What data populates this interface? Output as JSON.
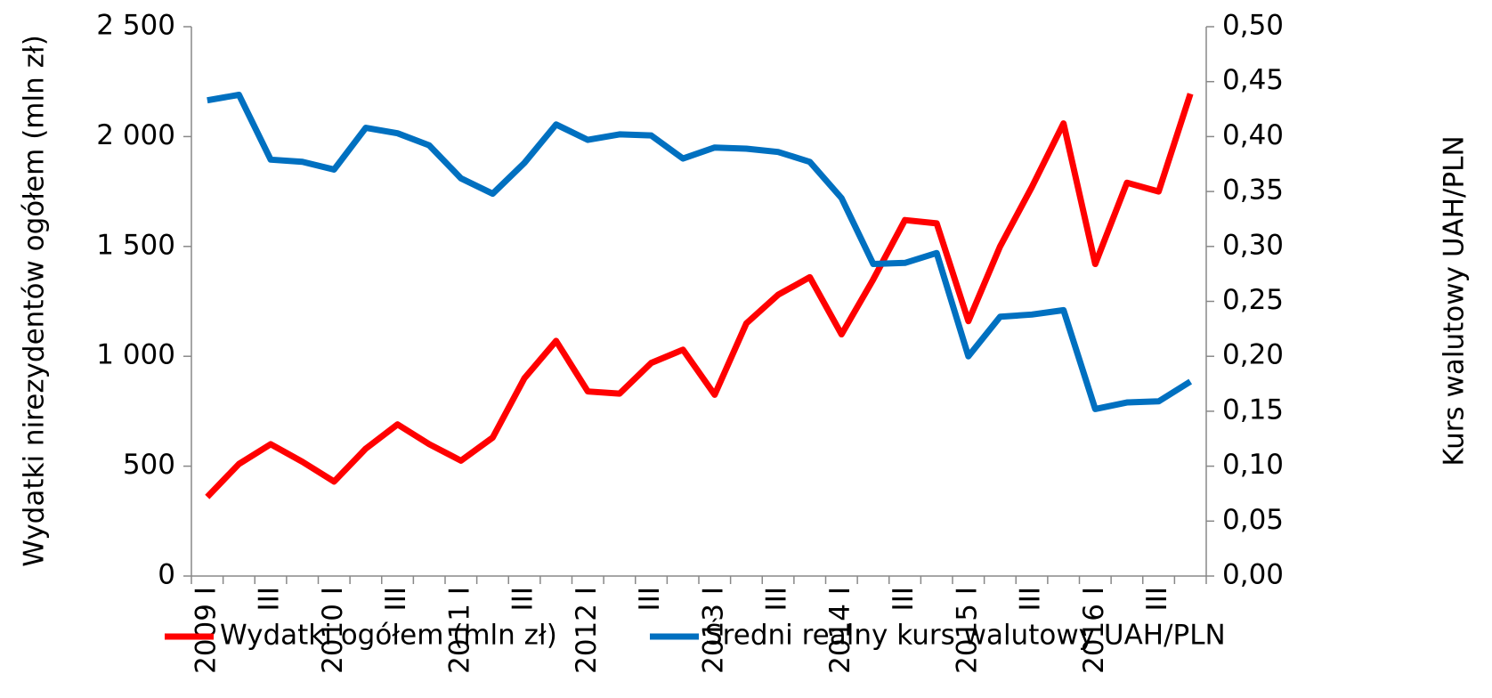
{
  "chart_data": {
    "type": "line",
    "y_label": "Wydatki nirezydentów ogółem (mln zł)",
    "y2_label": "Kurs walutowy UAH/PLN",
    "categories": [
      "2009 I",
      null,
      "III",
      null,
      "2010 I",
      null,
      "III",
      null,
      "2011 I",
      null,
      "III",
      null,
      "2012 I",
      null,
      "III",
      null,
      "2013 I",
      null,
      "III",
      null,
      "2014 I",
      null,
      "III",
      null,
      "2015 I",
      null,
      "III",
      null,
      "2016 I",
      null,
      "III",
      null
    ],
    "series": [
      {
        "name": "Wydatki ogółem (mln zł)",
        "color": "#ff0000",
        "values": [
          360,
          510,
          600,
          520,
          430,
          580,
          690,
          600,
          525,
          630,
          900,
          1070,
          840,
          830,
          970,
          1030,
          825,
          1150,
          1280,
          1360,
          1100,
          1350,
          1620,
          1605,
          1160,
          1500,
          1770,
          2060,
          1420,
          1790,
          1750,
          2195
        ]
      },
      {
        "name": "Średni realny kurs walutowy UAH/PLN",
        "color": "#0070c0",
        "axis": "y2",
        "values": [
          0.433,
          0.438,
          0.379,
          0.377,
          0.37,
          0.408,
          0.403,
          0.392,
          0.362,
          0.348,
          0.376,
          0.411,
          0.397,
          0.402,
          0.401,
          0.38,
          0.39,
          0.389,
          0.386,
          0.377,
          0.344,
          0.284,
          0.285,
          0.294,
          0.2,
          0.236,
          0.238,
          0.242,
          0.152,
          0.158,
          0.159,
          0.177
        ]
      }
    ],
    "ylim": [
      0,
      2500
    ],
    "yticks": [
      0,
      500,
      {
        "value": 1000,
        "label": "1 000"
      },
      {
        "value": 1500,
        "label": "1 500"
      },
      {
        "value": 2000,
        "label": "2 000"
      },
      {
        "value": 2500,
        "label": "2 500"
      }
    ],
    "y2lim": [
      0,
      0.5
    ],
    "y2ticks": [
      {
        "value": 0,
        "label": "0,00"
      },
      {
        "value": 0.05,
        "label": "0,05"
      },
      {
        "value": 0.1,
        "label": "0,10"
      },
      {
        "value": 0.15,
        "label": "0,15"
      },
      {
        "value": 0.2,
        "label": "0,20"
      },
      {
        "value": 0.25,
        "label": "0,25"
      },
      {
        "value": 0.3,
        "label": "0,30"
      },
      {
        "value": 0.35,
        "label": "0,35"
      },
      {
        "value": 0.4,
        "label": "0,40"
      },
      {
        "value": 0.45,
        "label": "0,45"
      },
      {
        "value": 0.5,
        "label": "0,50"
      }
    ],
    "legend": "bottom",
    "grid": false
  }
}
